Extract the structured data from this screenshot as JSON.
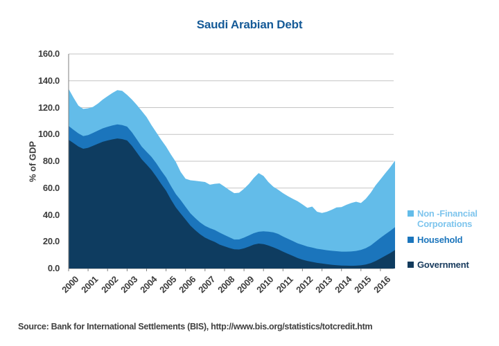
{
  "title": "Saudi Arabian Debt",
  "title_color": "#155A97",
  "source": "Source: Bank for International Settlements (BIS), http://www.bis.org/statistics/totcredit.htm",
  "y_axis": {
    "label": "% of GDP",
    "ticks": [
      "160.0",
      "140.0",
      "120.0",
      "100.0",
      "80.0",
      "60.0",
      "40.0",
      "20.0",
      "0.0"
    ]
  },
  "x_axis": {
    "years": [
      "2000",
      "2001",
      "2002",
      "2003",
      "2004",
      "2005",
      "2006",
      "2007",
      "2008",
      "2009",
      "2010",
      "2011",
      "2012",
      "2013",
      "2014",
      "2015",
      "2016"
    ]
  },
  "legend": {
    "items": [
      {
        "lines": [
          "Non -Financial",
          "Corporations"
        ],
        "swatch": "#63BCE9",
        "text_color": "#7EC5ED",
        "gap_below": 8
      },
      {
        "lines": [
          "Household"
        ],
        "swatch": "#1B75BC",
        "text_color": "#1B75BC",
        "gap_below": 21
      },
      {
        "lines": [
          "Government"
        ],
        "swatch": "#123A5C",
        "text_color": "#16395C",
        "gap_below": 0
      }
    ]
  },
  "chart_data": {
    "type": "area",
    "stacked": true,
    "title": "Saudi Arabian Debt",
    "ylabel": "% of GDP",
    "ylim": [
      0,
      160
    ],
    "ytick_step": 20,
    "grid": true,
    "legend_position": "right",
    "x_labels": [
      "2000",
      "2001",
      "2002",
      "2003",
      "2004",
      "2005",
      "2006",
      "2007",
      "2008",
      "2009",
      "2010",
      "2011",
      "2012",
      "2013",
      "2014",
      "2015",
      "2016"
    ],
    "frequency": "quarterly",
    "points_per_year": 4,
    "series": [
      {
        "name": "Government",
        "color": "#0E3C60",
        "values": [
          96,
          93.5,
          91,
          89.3,
          90,
          91.5,
          93,
          94.5,
          95.5,
          96.3,
          97,
          96.5,
          95.5,
          91.5,
          86.5,
          81.5,
          77.5,
          73.5,
          68.5,
          63,
          58,
          51.5,
          45.5,
          41,
          36.5,
          32,
          28.5,
          25.5,
          23,
          21.3,
          19.8,
          17.8,
          16.5,
          15.3,
          14.3,
          14.2,
          15,
          16.3,
          17.8,
          18.6,
          18.2,
          17.2,
          15.8,
          14.3,
          12.6,
          11,
          9.4,
          7.8,
          6.6,
          5.6,
          4.9,
          4.2,
          3.7,
          3.2,
          2.8,
          2.5,
          2.2,
          2.1,
          2.0,
          2.1,
          2.4,
          3.0,
          4.0,
          5.5,
          7.5,
          9.5,
          11.5,
          13.8
        ]
      },
      {
        "name": "Household",
        "color": "#1B75BC",
        "values": [
          10.3,
          10,
          9.8,
          9.5,
          9.5,
          9.6,
          9.8,
          10,
          10.2,
          10.4,
          10.5,
          10.5,
          10.3,
          10,
          9.8,
          9.5,
          9.5,
          9.8,
          10,
          10,
          10,
          10,
          10,
          10,
          9.5,
          9.2,
          9,
          8.8,
          8.8,
          8.8,
          8.9,
          9,
          8.5,
          8,
          7.3,
          7.5,
          8,
          8.3,
          8.5,
          8.8,
          9.5,
          10.3,
          11.2,
          11.5,
          11.3,
          11.2,
          11.1,
          11,
          11,
          10.8,
          10.7,
          10.5,
          10.5,
          10.4,
          10.4,
          10.4,
          10.4,
          10.5,
          10.7,
          11,
          11.5,
          12.2,
          13.2,
          14.5,
          15.3,
          16,
          16.6,
          17
        ]
      },
      {
        "name": "Non -Financial Corporations",
        "color": "#63BCE9",
        "values": [
          27.7,
          24,
          20.7,
          20.2,
          20,
          19.4,
          20.2,
          21.5,
          22.8,
          24.3,
          25.5,
          25.5,
          23.7,
          24.5,
          25.7,
          26.5,
          26,
          23.7,
          23,
          23,
          23,
          23.5,
          24,
          21,
          21,
          24.6,
          27.9,
          30.7,
          32.7,
          32.4,
          34.5,
          36.7,
          36,
          35.2,
          34.6,
          34.8,
          36.5,
          38.4,
          41.2,
          43.8,
          41.3,
          37,
          34,
          33,
          32.3,
          31.8,
          31.5,
          31.4,
          30.2,
          28.8,
          30.6,
          27.6,
          27.2,
          28.7,
          30.6,
          32.6,
          33.2,
          34.9,
          36.1,
          36.7,
          34.9,
          36.8,
          39.3,
          42,
          43.7,
          45.5,
          47.4,
          49.7
        ]
      }
    ]
  },
  "geometry_colors": {
    "gridline": "#C3C3C3",
    "axis_line": "#7F7F7F"
  }
}
